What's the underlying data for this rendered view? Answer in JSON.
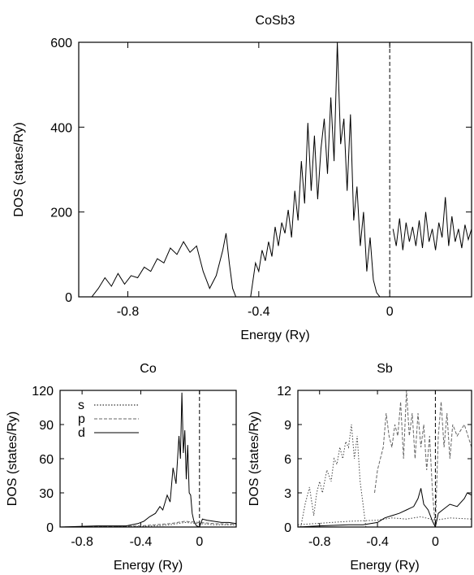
{
  "chart_data": [
    {
      "type": "line",
      "title": "CoSb3",
      "xlabel": "Energy (Ry)",
      "ylabel": "DOS (states/Ry)",
      "xlim": [
        -0.95,
        0.25
      ],
      "ylim": [
        0,
        600
      ],
      "xticks": [
        -0.8,
        -0.4,
        0
      ],
      "yticks": [
        0,
        200,
        400,
        600
      ],
      "fermi_level": 0,
      "series": [
        {
          "style": "solid",
          "x": [
            -0.91,
            -0.89,
            -0.87,
            -0.85,
            -0.83,
            -0.81,
            -0.79,
            -0.77,
            -0.75,
            -0.73,
            -0.71,
            -0.69,
            -0.67,
            -0.65,
            -0.63,
            -0.61,
            -0.59,
            -0.57,
            -0.55,
            -0.53,
            -0.51,
            -0.5,
            -0.49,
            -0.48,
            -0.47
          ],
          "y": [
            0,
            20,
            45,
            25,
            55,
            30,
            50,
            45,
            70,
            60,
            90,
            80,
            115,
            100,
            130,
            105,
            120,
            60,
            20,
            50,
            110,
            150,
            80,
            20,
            0
          ]
        },
        {
          "style": "solid",
          "x": [
            -0.425,
            -0.41,
            -0.4,
            -0.39,
            -0.38,
            -0.37,
            -0.36,
            -0.35,
            -0.34,
            -0.33,
            -0.32,
            -0.31,
            -0.3,
            -0.29,
            -0.28,
            -0.27,
            -0.26,
            -0.25,
            -0.24,
            -0.23,
            -0.22,
            -0.21,
            -0.2,
            -0.19,
            -0.18,
            -0.17,
            -0.16,
            -0.15,
            -0.14,
            -0.13,
            -0.12,
            -0.11,
            -0.1,
            -0.09,
            -0.08,
            -0.07,
            -0.06,
            -0.05,
            -0.04,
            -0.03,
            -0.02,
            -0.01,
            0.0
          ],
          "y": [
            0,
            80,
            60,
            110,
            85,
            130,
            95,
            165,
            120,
            175,
            150,
            205,
            140,
            250,
            180,
            320,
            220,
            410,
            250,
            380,
            230,
            350,
            420,
            290,
            470,
            320,
            600,
            360,
            420,
            250,
            430,
            180,
            260,
            120,
            200,
            60,
            140,
            40,
            10,
            0,
            0,
            0,
            0
          ]
        },
        {
          "style": "solid",
          "x": [
            0.01,
            0.02,
            0.03,
            0.04,
            0.05,
            0.06,
            0.07,
            0.08,
            0.09,
            0.1,
            0.11,
            0.12,
            0.13,
            0.14,
            0.15,
            0.16,
            0.17,
            0.18,
            0.19,
            0.2,
            0.21,
            0.22,
            0.23,
            0.24,
            0.25
          ],
          "y": [
            160,
            120,
            185,
            110,
            175,
            130,
            165,
            120,
            180,
            115,
            200,
            130,
            160,
            110,
            175,
            140,
            235,
            120,
            190,
            130,
            160,
            115,
            170,
            135,
            160
          ]
        }
      ]
    },
    {
      "type": "line",
      "title": "Co",
      "xlabel": "Energy (Ry)",
      "ylabel": "DOS (states/Ry)",
      "xlim": [
        -0.95,
        0.25
      ],
      "ylim": [
        0,
        120
      ],
      "xticks": [
        -0.8,
        -0.4,
        0
      ],
      "yticks": [
        0,
        30,
        60,
        90,
        120
      ],
      "fermi_level": 0,
      "legend": "top-left",
      "series": [
        {
          "name": "s",
          "style": "dotted",
          "x": [
            -0.95,
            -0.6,
            -0.4,
            -0.3,
            -0.2,
            -0.1,
            0.0,
            0.1,
            0.25
          ],
          "y": [
            0,
            0.3,
            0.5,
            1,
            2,
            4,
            3,
            2,
            2
          ]
        },
        {
          "name": "p",
          "style": "dashed",
          "x": [
            -0.95,
            -0.6,
            -0.4,
            -0.3,
            -0.2,
            -0.1,
            0.0,
            0.1,
            0.25
          ],
          "y": [
            0,
            0.5,
            1,
            2,
            3,
            5,
            4,
            3,
            2.5
          ]
        },
        {
          "name": "d",
          "style": "solid",
          "x": [
            -0.95,
            -0.7,
            -0.5,
            -0.42,
            -0.38,
            -0.34,
            -0.3,
            -0.27,
            -0.25,
            -0.22,
            -0.2,
            -0.18,
            -0.16,
            -0.14,
            -0.13,
            -0.12,
            -0.11,
            -0.1,
            -0.09,
            -0.08,
            -0.07,
            -0.06,
            -0.05,
            -0.04,
            -0.03,
            -0.02,
            0.0,
            0.02,
            0.05,
            0.1,
            0.15,
            0.2,
            0.25
          ],
          "y": [
            0,
            1,
            1,
            3,
            5,
            9,
            12,
            18,
            15,
            28,
            22,
            52,
            38,
            80,
            60,
            118,
            65,
            85,
            42,
            72,
            30,
            28,
            12,
            6,
            3,
            1,
            0,
            7,
            6,
            5,
            4,
            4,
            3
          ]
        }
      ]
    },
    {
      "type": "line",
      "title": "Sb",
      "xlabel": "Energy (Ry)",
      "ylabel": "DOS (states/Ry)",
      "xlim": [
        -0.95,
        0.25
      ],
      "ylim": [
        0,
        12
      ],
      "xticks": [
        -0.8,
        -0.4,
        0
      ],
      "yticks": [
        0,
        3,
        6,
        9,
        12
      ],
      "fermi_level": 0,
      "series": [
        {
          "style": "dotted",
          "x": [
            -0.93,
            -0.9,
            -0.87,
            -0.84,
            -0.82,
            -0.8,
            -0.78,
            -0.75,
            -0.72,
            -0.7,
            -0.68,
            -0.66,
            -0.64,
            -0.62,
            -0.6,
            -0.58,
            -0.56,
            -0.54,
            -0.52,
            -0.5,
            -0.49,
            -0.48
          ],
          "y": [
            0,
            2,
            3.5,
            1,
            3,
            4,
            3,
            5,
            4,
            6,
            5.5,
            7,
            6,
            7.5,
            7,
            9,
            6,
            8,
            4,
            2,
            1,
            0
          ]
        },
        {
          "style": "dashed",
          "x": [
            -0.42,
            -0.4,
            -0.38,
            -0.36,
            -0.34,
            -0.32,
            -0.3,
            -0.28,
            -0.26,
            -0.24,
            -0.22,
            -0.2,
            -0.18,
            -0.16,
            -0.14,
            -0.12,
            -0.1,
            -0.08,
            -0.06,
            -0.04,
            -0.02,
            0.0,
            0.02,
            0.04,
            0.06,
            0.08,
            0.1,
            0.12,
            0.15,
            0.2,
            0.25
          ],
          "y": [
            3,
            5,
            6,
            7,
            10,
            8,
            7,
            9,
            8,
            11,
            6,
            12,
            8,
            10,
            6,
            10,
            7,
            9,
            5,
            8,
            3,
            0,
            8,
            11,
            7,
            10,
            6,
            9,
            8,
            9,
            7
          ]
        },
        {
          "style": "dotted",
          "x": [
            -0.95,
            -0.6,
            -0.4,
            -0.3,
            -0.2,
            -0.1,
            0.0,
            0.1,
            0.25
          ],
          "y": [
            0.2,
            0.5,
            0.6,
            0.8,
            0.7,
            0.9,
            0.6,
            0.8,
            0.7
          ]
        },
        {
          "style": "solid",
          "x": [
            -0.95,
            -0.8,
            -0.6,
            -0.5,
            -0.4,
            -0.35,
            -0.3,
            -0.25,
            -0.2,
            -0.15,
            -0.12,
            -0.1,
            -0.08,
            -0.05,
            -0.02,
            0.0,
            0.02,
            0.05,
            0.1,
            0.15,
            0.2,
            0.22,
            0.25
          ],
          "y": [
            0,
            0.1,
            0.2,
            0.2,
            0.4,
            0.8,
            1,
            1.2,
            1.5,
            1.8,
            2.5,
            3.4,
            2,
            1.5,
            0.5,
            0,
            1.2,
            1.5,
            2,
            1.8,
            2.5,
            3,
            2.8
          ]
        }
      ]
    }
  ]
}
